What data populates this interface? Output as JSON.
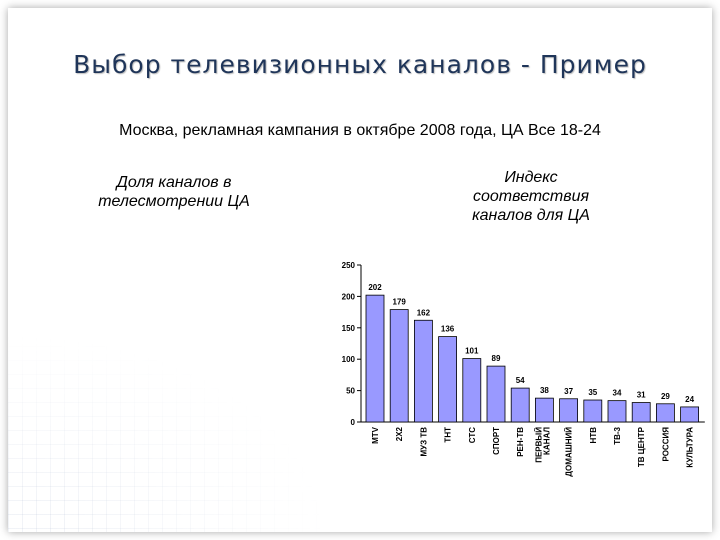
{
  "slide": {
    "title": "Выбор телевизионных каналов - Пример",
    "subtitle": "Москва, рекламная кампания в октябре 2008 года, ЦА Все 18-24",
    "left_label": "Доля каналов в телесмотрении ЦА",
    "right_label": "Индекс соответствия каналов для ЦА"
  },
  "chart_data": {
    "type": "bar",
    "categories": [
      "MTV",
      "2X2",
      "МУЗ ТВ",
      "ТНТ",
      "СТС",
      "СПОРТ",
      "РЕН-ТВ",
      "ПЕРВЫЙ КАНАЛ",
      "ДОМАШНИЙ",
      "НТВ",
      "ТВ-3",
      "ТВ ЦЕНТР",
      "РОССИЯ",
      "КУЛЬТУРА"
    ],
    "values": [
      202,
      179,
      162,
      136,
      101,
      89,
      54,
      38,
      37,
      35,
      34,
      31,
      29,
      24
    ],
    "ylim": [
      0,
      250
    ],
    "yticks": [
      0,
      50,
      100,
      150,
      200,
      250
    ],
    "bar_color": "#9999ff",
    "grid": false
  }
}
